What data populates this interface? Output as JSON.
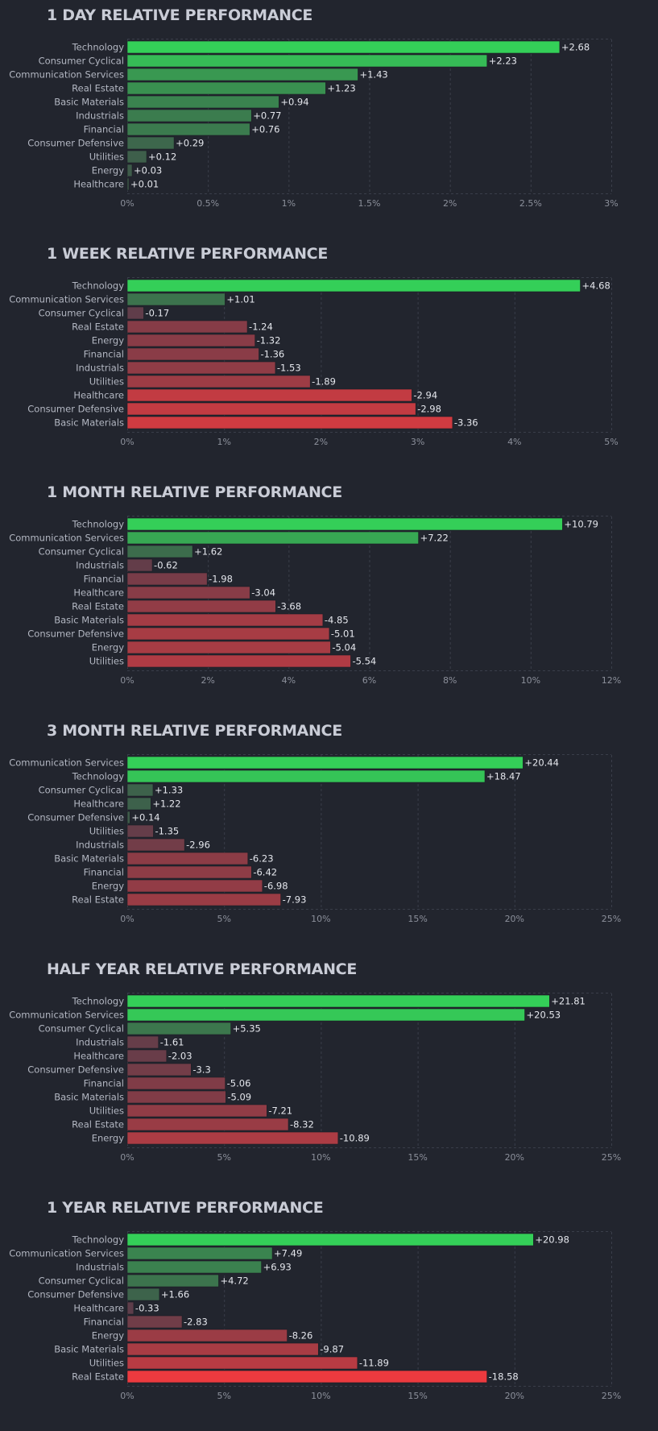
{
  "colors": {
    "background": "#22252e",
    "strong_positive": "#34cf58",
    "weak_positive": "#3e5a4a",
    "weak_negative": "#5a3d4a",
    "strong_negative": "#ff3a3e"
  },
  "chart_data": [
    {
      "type": "bar",
      "orientation": "horizontal",
      "title": "1 DAY RELATIVE PERFORMANCE",
      "categories": [
        "Technology",
        "Consumer Cyclical",
        "Communication Services",
        "Real Estate",
        "Basic Materials",
        "Industrials",
        "Financial",
        "Consumer Defensive",
        "Utilities",
        "Energy",
        "Healthcare"
      ],
      "values": [
        2.68,
        2.23,
        1.43,
        1.23,
        0.94,
        0.77,
        0.76,
        0.29,
        0.12,
        0.03,
        0.01
      ],
      "value_labels": [
        "+2.68",
        "+2.23",
        "+1.43",
        "+1.23",
        "+0.94",
        "+0.77",
        "+0.76",
        "+0.29",
        "+0.12",
        "+0.03",
        "+0.01"
      ],
      "xlim": [
        0,
        3
      ],
      "ticks": [
        0,
        0.5,
        1,
        1.5,
        2,
        2.5,
        3
      ],
      "tick_labels": [
        "0%",
        "0.5%",
        "1%",
        "1.5%",
        "2%",
        "2.5%",
        "3%"
      ],
      "grid": true
    },
    {
      "type": "bar",
      "orientation": "horizontal",
      "title": "1 WEEK RELATIVE PERFORMANCE",
      "categories": [
        "Technology",
        "Communication Services",
        "Consumer Cyclical",
        "Real Estate",
        "Energy",
        "Financial",
        "Industrials",
        "Utilities",
        "Healthcare",
        "Consumer Defensive",
        "Basic Materials"
      ],
      "values": [
        4.68,
        1.01,
        -0.17,
        -1.24,
        -1.32,
        -1.36,
        -1.53,
        -1.89,
        -2.94,
        -2.98,
        -3.36
      ],
      "value_labels": [
        "+4.68",
        "+1.01",
        "-0.17",
        "-1.24",
        "-1.32",
        "-1.36",
        "-1.53",
        "-1.89",
        "-2.94",
        "-2.98",
        "-3.36"
      ],
      "xlim": [
        0,
        5
      ],
      "ticks": [
        0,
        1,
        2,
        3,
        4,
        5
      ],
      "tick_labels": [
        "0%",
        "1%",
        "2%",
        "3%",
        "4%",
        "5%"
      ],
      "grid": true
    },
    {
      "type": "bar",
      "orientation": "horizontal",
      "title": "1 MONTH RELATIVE PERFORMANCE",
      "categories": [
        "Technology",
        "Communication Services",
        "Consumer Cyclical",
        "Industrials",
        "Financial",
        "Healthcare",
        "Real Estate",
        "Basic Materials",
        "Consumer Defensive",
        "Energy",
        "Utilities"
      ],
      "values": [
        10.79,
        7.22,
        1.62,
        -0.62,
        -1.98,
        -3.04,
        -3.68,
        -4.85,
        -5.01,
        -5.04,
        -5.54
      ],
      "value_labels": [
        "+10.79",
        "+7.22",
        "+1.62",
        "-0.62",
        "-1.98",
        "-3.04",
        "-3.68",
        "-4.85",
        "-5.01",
        "-5.04",
        "-5.54"
      ],
      "xlim": [
        0,
        12
      ],
      "ticks": [
        0,
        2,
        4,
        6,
        8,
        10,
        12
      ],
      "tick_labels": [
        "0%",
        "2%",
        "4%",
        "6%",
        "8%",
        "10%",
        "12%"
      ],
      "grid": true
    },
    {
      "type": "bar",
      "orientation": "horizontal",
      "title": "3 MONTH RELATIVE PERFORMANCE",
      "categories": [
        "Communication Services",
        "Technology",
        "Consumer Cyclical",
        "Healthcare",
        "Consumer Defensive",
        "Utilities",
        "Industrials",
        "Basic Materials",
        "Financial",
        "Energy",
        "Real Estate"
      ],
      "values": [
        20.44,
        18.47,
        1.33,
        1.22,
        0.14,
        -1.35,
        -2.96,
        -6.23,
        -6.42,
        -6.98,
        -7.93
      ],
      "value_labels": [
        "+20.44",
        "+18.47",
        "+1.33",
        "+1.22",
        "+0.14",
        "-1.35",
        "-2.96",
        "-6.23",
        "-6.42",
        "-6.98",
        "-7.93"
      ],
      "xlim": [
        0,
        25
      ],
      "ticks": [
        0,
        5,
        10,
        15,
        20,
        25
      ],
      "tick_labels": [
        "0%",
        "5%",
        "10%",
        "15%",
        "20%",
        "25%"
      ],
      "grid": true
    },
    {
      "type": "bar",
      "orientation": "horizontal",
      "title": "HALF YEAR RELATIVE PERFORMANCE",
      "categories": [
        "Technology",
        "Communication Services",
        "Consumer Cyclical",
        "Industrials",
        "Healthcare",
        "Consumer Defensive",
        "Financial",
        "Basic Materials",
        "Utilities",
        "Real Estate",
        "Energy"
      ],
      "values": [
        21.81,
        20.53,
        5.35,
        -1.61,
        -2.03,
        -3.3,
        -5.06,
        -5.09,
        -7.21,
        -8.32,
        -10.89
      ],
      "value_labels": [
        "+21.81",
        "+20.53",
        "+5.35",
        "-1.61",
        "-2.03",
        "-3.3",
        "-5.06",
        "-5.09",
        "-7.21",
        "-8.32",
        "-10.89"
      ],
      "xlim": [
        0,
        25
      ],
      "ticks": [
        0,
        5,
        10,
        15,
        20,
        25
      ],
      "tick_labels": [
        "0%",
        "5%",
        "10%",
        "15%",
        "20%",
        "25%"
      ],
      "grid": true
    },
    {
      "type": "bar",
      "orientation": "horizontal",
      "title": "1 YEAR RELATIVE PERFORMANCE",
      "categories": [
        "Technology",
        "Communication Services",
        "Industrials",
        "Consumer Cyclical",
        "Consumer Defensive",
        "Healthcare",
        "Financial",
        "Energy",
        "Basic Materials",
        "Utilities",
        "Real Estate"
      ],
      "values": [
        20.98,
        7.49,
        6.93,
        4.72,
        1.66,
        -0.33,
        -2.83,
        -8.26,
        -9.87,
        -11.89,
        -18.58
      ],
      "value_labels": [
        "+20.98",
        "+7.49",
        "+6.93",
        "+4.72",
        "+1.66",
        "-0.33",
        "-2.83",
        "-8.26",
        "-9.87",
        "-11.89",
        "-18.58"
      ],
      "xlim": [
        0,
        25
      ],
      "ticks": [
        0,
        5,
        10,
        15,
        20,
        25
      ],
      "tick_labels": [
        "0%",
        "5%",
        "10%",
        "15%",
        "20%",
        "25%"
      ],
      "grid": true
    }
  ]
}
